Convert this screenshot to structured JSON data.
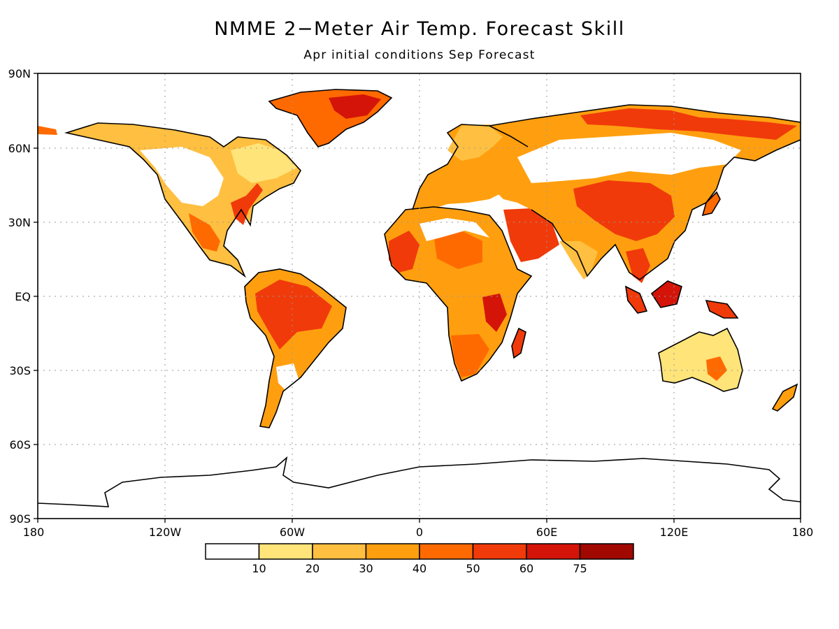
{
  "header": {
    "title": "NMME 2−Meter Air Temp. Forecast Skill",
    "subtitle": "Apr initial conditions   Sep Forecast"
  },
  "axes": {
    "lat_labels": [
      "90N",
      "60N",
      "30N",
      "EQ",
      "30S",
      "60S",
      "90S"
    ],
    "lon_labels": [
      "180",
      "120W",
      "60W",
      "0",
      "60E",
      "120E",
      "180"
    ]
  },
  "colorbar": {
    "colors": [
      "#ffffff",
      "#ffe47a",
      "#ffbf40",
      "#ff9f0f",
      "#ff6a00",
      "#f03a0a",
      "#d41408",
      "#a00800"
    ],
    "labels": [
      "10",
      "20",
      "30",
      "40",
      "50",
      "60",
      "75"
    ]
  }
}
